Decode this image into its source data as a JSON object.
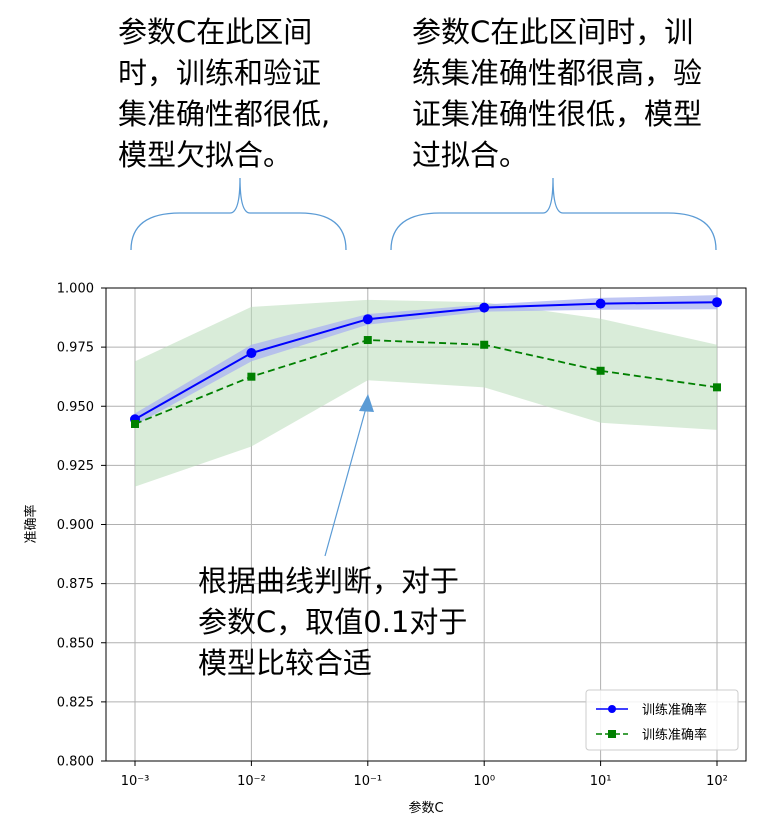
{
  "annotations": {
    "left_note": [
      "参数C在此区间",
      "时，训练和验证",
      "集准确性都很低,",
      "模型欠拟合。"
    ],
    "right_note": [
      "参数C在此区间时，训",
      "练集准确性都很高，验",
      "证集准确性很低，模型",
      "过拟合。"
    ],
    "middle_note": [
      "根据曲线判断，对于",
      "参数C，取值0.1对于",
      "模型比较合适"
    ]
  },
  "colors": {
    "train": "#0000ff",
    "validation": "#008000",
    "train_band": "#aab3f0",
    "validation_band": "#b9ddb9",
    "brace": "#5b9bd5",
    "arrow": "#5b9bd5"
  },
  "chart_data": {
    "type": "line",
    "x_scale": "log",
    "x": [
      0.001,
      0.01,
      0.1,
      1,
      10,
      100
    ],
    "x_tick_labels": [
      "10⁻³",
      "10⁻²",
      "10⁻¹",
      "10⁰",
      "10¹",
      "10²"
    ],
    "xlabel": "参数C",
    "ylabel": "准确率",
    "ylim": [
      0.8,
      1.0
    ],
    "y_ticks": [
      0.8,
      0.825,
      0.85,
      0.875,
      0.9,
      0.925,
      0.95,
      0.975,
      1.0
    ],
    "y_tick_labels": [
      "0.800",
      "0.825",
      "0.850",
      "0.875",
      "0.900",
      "0.925",
      "0.950",
      "0.975",
      "1.000"
    ],
    "grid": true,
    "legend_position": "lower-right",
    "series": [
      {
        "name": "训练准确率",
        "style": "solid",
        "marker": "circle",
        "values": [
          0.9445,
          0.9725,
          0.9868,
          0.9917,
          0.9934,
          0.994
        ],
        "band_upper": [
          0.947,
          0.976,
          0.989,
          0.993,
          0.9958,
          0.997
        ],
        "band_lower": [
          0.942,
          0.969,
          0.9845,
          0.99,
          0.9908,
          0.991
        ]
      },
      {
        "name": "训练准确率",
        "style": "dashed",
        "marker": "square",
        "values": [
          0.9425,
          0.9625,
          0.978,
          0.976,
          0.965,
          0.958
        ],
        "band_upper": [
          0.969,
          0.992,
          0.995,
          0.994,
          0.987,
          0.976
        ],
        "band_lower": [
          0.916,
          0.933,
          0.961,
          0.958,
          0.943,
          0.94
        ]
      }
    ]
  }
}
